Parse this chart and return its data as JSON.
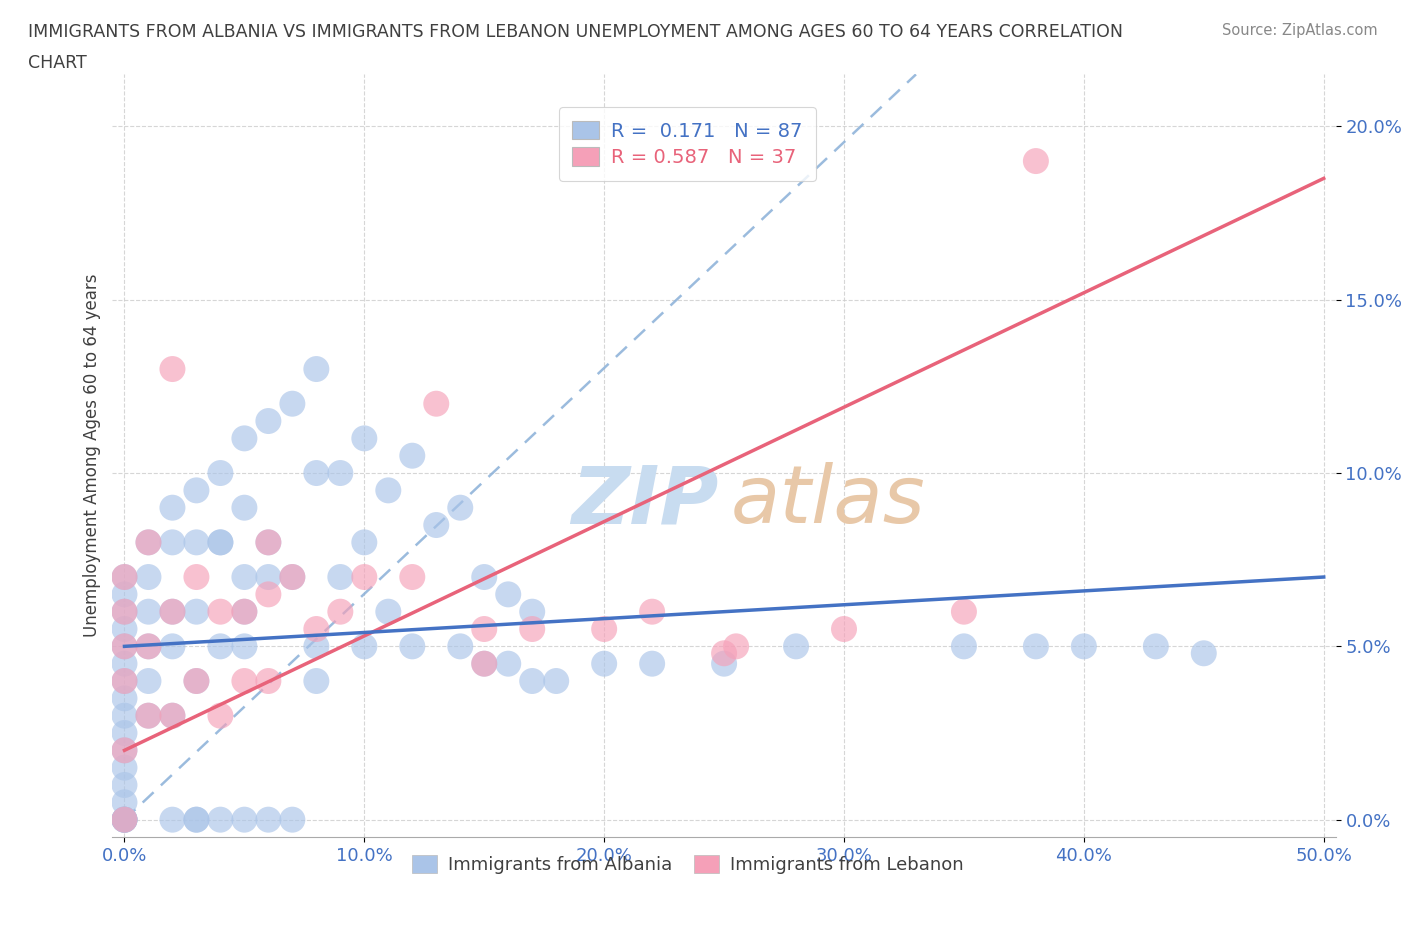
{
  "title_line1": "IMMIGRANTS FROM ALBANIA VS IMMIGRANTS FROM LEBANON UNEMPLOYMENT AMONG AGES 60 TO 64 YEARS CORRELATION",
  "title_line2": "CHART",
  "source": "Source: ZipAtlas.com",
  "ylabel": "Unemployment Among Ages 60 to 64 years",
  "xlim": [
    -0.005,
    0.505
  ],
  "ylim": [
    -0.005,
    0.215
  ],
  "xticks": [
    0.0,
    0.1,
    0.2,
    0.3,
    0.4,
    0.5
  ],
  "yticks": [
    0.0,
    0.05,
    0.1,
    0.15,
    0.2
  ],
  "xticklabels": [
    "0.0%",
    "10.0%",
    "20.0%",
    "30.0%",
    "40.0%",
    "50.0%"
  ],
  "yticklabels": [
    "0.0%",
    "5.0%",
    "10.0%",
    "15.0%",
    "20.0%"
  ],
  "albania_color": "#aac4e8",
  "lebanon_color": "#f5a0b8",
  "albania_line_color": "#4472C4",
  "lebanon_line_color": "#e8637a",
  "diag_line_color": "#8ab0d8",
  "albania_R": 0.171,
  "albania_N": 87,
  "lebanon_R": 0.587,
  "lebanon_N": 37,
  "albania_label": "Immigrants from Albania",
  "lebanon_label": "Immigrants from Lebanon",
  "watermark_zip_color": "#c8dcf0",
  "watermark_atlas_color": "#e8c8a8",
  "tick_color": "#4472C4",
  "title_color": "#404040",
  "source_color": "#888888",
  "grid_color": "#cccccc",
  "ylabel_color": "#404040"
}
